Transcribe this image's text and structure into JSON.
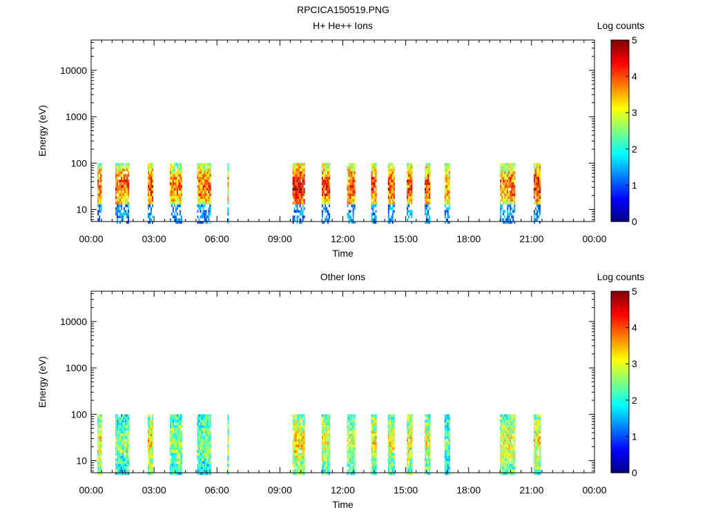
{
  "page_title": "RPCICA150519.PNG",
  "chart_data": [
    {
      "type": "heatmap",
      "title": "H+ He++ Ions",
      "xlabel": "Time",
      "ylabel": "Energy (eV)",
      "x_ticks": [
        "00:00",
        "03:00",
        "06:00",
        "09:00",
        "12:00",
        "15:00",
        "18:00",
        "21:00",
        "00:00"
      ],
      "x_range_hours": [
        0,
        24
      ],
      "y_scale": "log",
      "y_range": [
        5.5,
        45000
      ],
      "y_ticks": [
        "10",
        "100",
        "1000",
        "10000"
      ],
      "colorbar": {
        "label": "Log counts",
        "range": [
          0,
          5
        ],
        "ticks": [
          "0",
          "1",
          "2",
          "3",
          "4",
          "5"
        ]
      },
      "intervals": [
        {
          "start": 0.3,
          "end": 0.45,
          "energy_max": 100,
          "peak_log_counts": 3.5
        },
        {
          "start": 1.15,
          "end": 1.8,
          "energy_max": 100,
          "peak_log_counts": 3.5
        },
        {
          "start": 2.7,
          "end": 2.95,
          "energy_max": 100,
          "peak_log_counts": 3.6
        },
        {
          "start": 3.75,
          "end": 4.3,
          "energy_max": 100,
          "peak_log_counts": 3.3
        },
        {
          "start": 5.05,
          "end": 5.65,
          "energy_max": 100,
          "peak_log_counts": 3.4
        },
        {
          "start": 6.5,
          "end": 6.55,
          "energy_max": 100,
          "peak_log_counts": 3.0
        },
        {
          "start": 9.6,
          "end": 10.15,
          "energy_max": 100,
          "peak_log_counts": 4.0
        },
        {
          "start": 11.0,
          "end": 11.35,
          "energy_max": 100,
          "peak_log_counts": 3.6
        },
        {
          "start": 12.2,
          "end": 12.55,
          "energy_max": 100,
          "peak_log_counts": 3.5
        },
        {
          "start": 13.35,
          "end": 13.55,
          "energy_max": 100,
          "peak_log_counts": 3.6
        },
        {
          "start": 14.15,
          "end": 14.45,
          "energy_max": 100,
          "peak_log_counts": 3.6
        },
        {
          "start": 15.05,
          "end": 15.25,
          "energy_max": 100,
          "peak_log_counts": 3.6
        },
        {
          "start": 15.9,
          "end": 16.15,
          "energy_max": 100,
          "peak_log_counts": 3.6
        },
        {
          "start": 16.85,
          "end": 17.05,
          "energy_max": 100,
          "peak_log_counts": 3.2
        },
        {
          "start": 19.5,
          "end": 20.2,
          "energy_max": 100,
          "peak_log_counts": 3.4
        },
        {
          "start": 21.1,
          "end": 21.4,
          "energy_max": 100,
          "peak_log_counts": 3.8
        }
      ]
    },
    {
      "type": "heatmap",
      "title": "Other Ions",
      "xlabel": "Time",
      "ylabel": "Energy (eV)",
      "x_ticks": [
        "00:00",
        "03:00",
        "06:00",
        "09:00",
        "12:00",
        "15:00",
        "18:00",
        "21:00",
        "00:00"
      ],
      "x_range_hours": [
        0,
        24
      ],
      "y_scale": "log",
      "y_range": [
        5.5,
        45000
      ],
      "y_ticks": [
        "10",
        "100",
        "1000",
        "10000"
      ],
      "colorbar": {
        "label": "Log counts",
        "range": [
          0,
          5
        ],
        "ticks": [
          "0",
          "1",
          "2",
          "3",
          "4",
          "5"
        ]
      },
      "intervals": [
        {
          "start": 0.3,
          "end": 0.45,
          "energy_max": 100,
          "peak_log_counts": 3.7
        },
        {
          "start": 1.15,
          "end": 1.8,
          "energy_max": 100,
          "peak_log_counts": 3.0
        },
        {
          "start": 2.7,
          "end": 2.95,
          "energy_max": 100,
          "peak_log_counts": 3.8
        },
        {
          "start": 3.75,
          "end": 4.3,
          "energy_max": 100,
          "peak_log_counts": 3.2
        },
        {
          "start": 5.05,
          "end": 5.65,
          "energy_max": 100,
          "peak_log_counts": 3.0
        },
        {
          "start": 6.5,
          "end": 6.55,
          "energy_max": 100,
          "peak_log_counts": 3.2
        },
        {
          "start": 9.6,
          "end": 10.15,
          "energy_max": 100,
          "peak_log_counts": 3.9
        },
        {
          "start": 11.0,
          "end": 11.35,
          "energy_max": 100,
          "peak_log_counts": 3.6
        },
        {
          "start": 12.2,
          "end": 12.55,
          "energy_max": 100,
          "peak_log_counts": 3.3
        },
        {
          "start": 13.35,
          "end": 13.55,
          "energy_max": 100,
          "peak_log_counts": 3.7
        },
        {
          "start": 14.15,
          "end": 14.45,
          "energy_max": 100,
          "peak_log_counts": 3.6
        },
        {
          "start": 15.05,
          "end": 15.25,
          "energy_max": 100,
          "peak_log_counts": 3.7
        },
        {
          "start": 15.9,
          "end": 16.15,
          "energy_max": 100,
          "peak_log_counts": 3.5
        },
        {
          "start": 16.85,
          "end": 17.05,
          "energy_max": 100,
          "peak_log_counts": 2.8
        },
        {
          "start": 19.5,
          "end": 20.2,
          "energy_max": 100,
          "peak_log_counts": 3.6
        },
        {
          "start": 21.1,
          "end": 21.4,
          "energy_max": 100,
          "peak_log_counts": 3.8
        }
      ]
    }
  ]
}
